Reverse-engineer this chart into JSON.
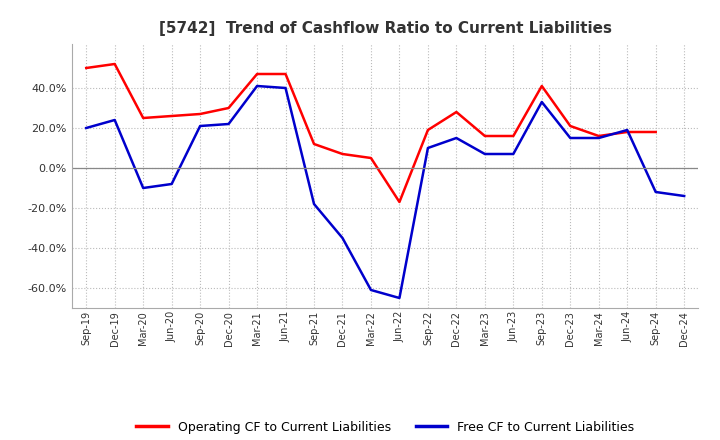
{
  "title": "[5742]  Trend of Cashflow Ratio to Current Liabilities",
  "x_labels": [
    "Sep-19",
    "Dec-19",
    "Mar-20",
    "Jun-20",
    "Sep-20",
    "Dec-20",
    "Mar-21",
    "Jun-21",
    "Sep-21",
    "Dec-21",
    "Mar-22",
    "Jun-22",
    "Sep-22",
    "Dec-22",
    "Mar-23",
    "Jun-23",
    "Sep-23",
    "Dec-23",
    "Mar-24",
    "Jun-24",
    "Sep-24",
    "Dec-24"
  ],
  "operating_cf": [
    0.5,
    0.52,
    0.25,
    0.26,
    0.27,
    0.3,
    0.47,
    0.47,
    0.12,
    0.07,
    0.05,
    -0.17,
    0.19,
    0.28,
    0.16,
    0.16,
    0.41,
    0.21,
    0.16,
    0.18,
    0.18,
    null
  ],
  "free_cf": [
    0.2,
    0.24,
    -0.1,
    -0.08,
    0.21,
    0.22,
    0.41,
    0.4,
    -0.18,
    -0.35,
    -0.61,
    -0.65,
    0.1,
    0.15,
    0.07,
    0.07,
    0.33,
    0.15,
    0.15,
    0.19,
    -0.12,
    -0.14
  ],
  "operating_color": "#FF0000",
  "free_color": "#0000CC",
  "ylim": [
    -0.7,
    0.62
  ],
  "yticks": [
    -0.6,
    -0.4,
    -0.2,
    0.0,
    0.2,
    0.4
  ],
  "background_color": "#FFFFFF",
  "grid_color": "#BBBBBB",
  "legend_op": "Operating CF to Current Liabilities",
  "legend_free": "Free CF to Current Liabilities",
  "title_color": "#333333"
}
